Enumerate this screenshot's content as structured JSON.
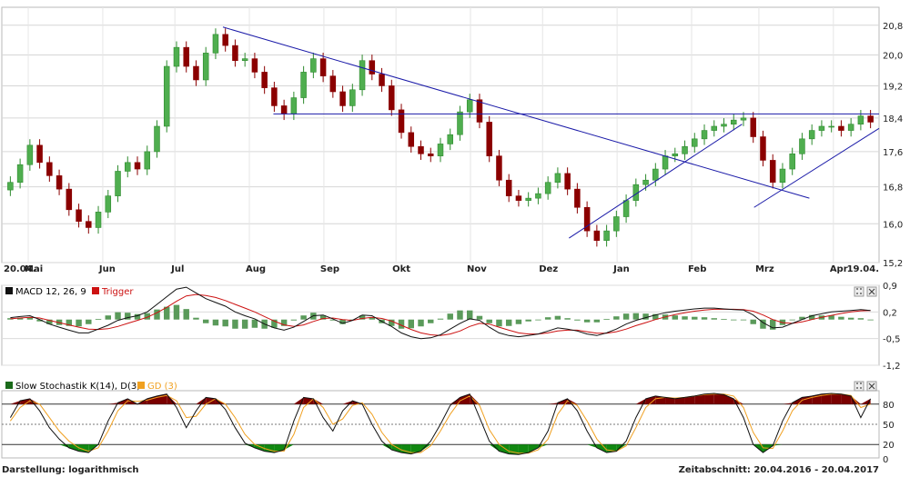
{
  "footer": {
    "scale_label": "Darstellung: logarithmisch",
    "period_label": "Zeitabschnitt: 20.04.2016 - 20.04.2017"
  },
  "colors": {
    "up_candle": "#2e8b2e",
    "down_candle": "#8b0000",
    "trendline": "#1a1aa8",
    "macd": "#111111",
    "trigger": "#cc1111",
    "stoch_k": "#111111",
    "stoch_d": "#f0a020",
    "overbought_fill": "#7a0000",
    "oversold_fill": "#118811"
  },
  "chart_data": [
    {
      "type": "candlestick",
      "scale": "log",
      "ylim": [
        15.2,
        21.3
      ],
      "y_ticks": [
        "15,2",
        "16,0",
        "16,8",
        "17,6",
        "18,4",
        "19,2",
        "20,0",
        "20,8"
      ],
      "x_ticks": [
        "20.04.",
        "Mai",
        "Jun",
        "Jul",
        "Aug",
        "Sep",
        "Okt",
        "Nov",
        "Dez",
        "Jan",
        "Feb",
        "Mrz",
        "Apr",
        "19.04."
      ],
      "close_series": [
        16.9,
        17.3,
        17.75,
        17.35,
        17.05,
        16.75,
        16.3,
        16.05,
        15.92,
        16.25,
        16.6,
        17.15,
        17.35,
        17.2,
        17.6,
        18.2,
        19.7,
        20.2,
        19.7,
        19.35,
        20.05,
        20.55,
        20.25,
        19.85,
        19.9,
        19.55,
        19.15,
        18.7,
        18.5,
        18.9,
        19.55,
        19.9,
        19.45,
        19.05,
        18.7,
        19.1,
        19.85,
        19.5,
        19.2,
        18.6,
        18.05,
        17.72,
        17.55,
        17.5,
        17.78,
        18.0,
        18.55,
        18.85,
        18.3,
        17.5,
        16.95,
        16.6,
        16.5,
        16.55,
        16.65,
        16.9,
        17.1,
        16.75,
        16.35,
        15.85,
        15.65,
        15.85,
        16.15,
        16.5,
        16.85,
        16.95,
        17.2,
        17.5,
        17.55,
        17.72,
        17.9,
        18.1,
        18.2,
        18.25,
        18.35,
        18.4,
        17.95,
        17.4,
        16.9,
        17.2,
        17.55,
        17.9,
        18.1,
        18.2,
        18.2,
        18.1,
        18.25,
        18.45,
        18.3
      ],
      "trendlines": [
        {
          "from": [
            "2016-07-21",
            20.75
          ],
          "to": [
            "2017-03-22",
            16.55
          ]
        },
        {
          "from": [
            "2016-08-11",
            18.5
          ],
          "to": [
            "2017-04-20",
            18.5
          ]
        },
        {
          "from": [
            "2016-12-12",
            15.7
          ],
          "to": [
            "2017-02-22",
            18.25
          ]
        },
        {
          "from": [
            "2017-02-27",
            16.35
          ],
          "to": [
            "2017-04-20",
            18.15
          ]
        }
      ]
    },
    {
      "type": "line",
      "legend": [
        "MACD 12, 26, 9",
        "Trigger"
      ],
      "ylim": [
        -1.2,
        0.9
      ],
      "y_ticks": [
        "0,9",
        "0,2",
        "-0,5",
        "-1,2"
      ],
      "series": [
        {
          "name": "MACD 12, 26, 9",
          "values": [
            0.05,
            0.08,
            0.1,
            0.0,
            -0.12,
            -0.2,
            -0.28,
            -0.35,
            -0.35,
            -0.25,
            -0.15,
            -0.02,
            0.05,
            0.1,
            0.2,
            0.4,
            0.6,
            0.8,
            0.85,
            0.7,
            0.55,
            0.45,
            0.35,
            0.2,
            0.1,
            0.02,
            -0.12,
            -0.22,
            -0.28,
            -0.2,
            -0.05,
            0.1,
            0.12,
            0.02,
            -0.1,
            -0.02,
            0.12,
            0.1,
            -0.05,
            -0.18,
            -0.35,
            -0.45,
            -0.5,
            -0.48,
            -0.4,
            -0.25,
            -0.1,
            0.02,
            -0.02,
            -0.2,
            -0.35,
            -0.42,
            -0.45,
            -0.42,
            -0.38,
            -0.3,
            -0.22,
            -0.25,
            -0.3,
            -0.38,
            -0.42,
            -0.35,
            -0.25,
            -0.12,
            -0.02,
            0.05,
            0.12,
            0.18,
            0.22,
            0.25,
            0.28,
            0.3,
            0.3,
            0.28,
            0.26,
            0.25,
            0.12,
            -0.08,
            -0.22,
            -0.2,
            -0.1,
            0.0,
            0.1,
            0.15,
            0.2,
            0.22,
            0.24,
            0.26,
            0.24
          ]
        },
        {
          "name": "Trigger",
          "values": [
            0.02,
            0.04,
            0.06,
            0.04,
            -0.02,
            -0.08,
            -0.14,
            -0.2,
            -0.25,
            -0.26,
            -0.24,
            -0.18,
            -0.1,
            -0.02,
            0.06,
            0.18,
            0.32,
            0.48,
            0.62,
            0.66,
            0.63,
            0.58,
            0.5,
            0.4,
            0.3,
            0.2,
            0.08,
            -0.04,
            -0.14,
            -0.18,
            -0.14,
            -0.05,
            0.03,
            0.04,
            0.0,
            -0.02,
            0.03,
            0.06,
            0.03,
            -0.04,
            -0.15,
            -0.26,
            -0.35,
            -0.4,
            -0.42,
            -0.38,
            -0.3,
            -0.18,
            -0.1,
            -0.12,
            -0.2,
            -0.28,
            -0.35,
            -0.38,
            -0.38,
            -0.35,
            -0.3,
            -0.28,
            -0.28,
            -0.32,
            -0.36,
            -0.36,
            -0.32,
            -0.25,
            -0.16,
            -0.08,
            0.0,
            0.07,
            0.13,
            0.18,
            0.22,
            0.25,
            0.27,
            0.27,
            0.27,
            0.26,
            0.22,
            0.12,
            0.0,
            -0.08,
            -0.1,
            -0.06,
            0.0,
            0.06,
            0.11,
            0.16,
            0.2,
            0.23,
            0.24
          ]
        }
      ]
    },
    {
      "type": "line",
      "legend": [
        "Slow Stochastik K(14), D(3)",
        "GD (3)"
      ],
      "ylim": [
        0,
        100
      ],
      "y_ticks": [
        "80",
        "50",
        "20"
      ],
      "bottom_tick": "0",
      "reference_lines": [
        80,
        50,
        20
      ],
      "series": [
        {
          "name": "Slow Stochastik K(14), D(3)",
          "values": [
            60,
            85,
            88,
            70,
            45,
            28,
            15,
            10,
            8,
            20,
            55,
            82,
            88,
            80,
            88,
            92,
            95,
            75,
            45,
            70,
            90,
            88,
            72,
            45,
            22,
            15,
            10,
            8,
            12,
            55,
            90,
            88,
            60,
            40,
            70,
            85,
            80,
            50,
            25,
            12,
            8,
            6,
            10,
            25,
            50,
            78,
            90,
            95,
            60,
            25,
            10,
            6,
            5,
            8,
            15,
            40,
            82,
            88,
            70,
            40,
            15,
            8,
            10,
            25,
            60,
            88,
            92,
            90,
            88,
            90,
            92,
            95,
            96,
            94,
            88,
            60,
            20,
            8,
            18,
            55,
            82,
            90,
            92,
            95,
            96,
            95,
            92,
            60,
            88
          ]
        },
        {
          "name": "GD (3)",
          "values": [
            55,
            75,
            85,
            80,
            60,
            40,
            25,
            15,
            10,
            15,
            40,
            70,
            85,
            84,
            86,
            90,
            93,
            85,
            60,
            62,
            80,
            88,
            80,
            60,
            35,
            20,
            14,
            10,
            10,
            35,
            75,
            88,
            75,
            50,
            58,
            78,
            82,
            65,
            38,
            20,
            12,
            8,
            8,
            18,
            40,
            65,
            85,
            92,
            78,
            42,
            20,
            10,
            7,
            7,
            12,
            28,
            65,
            85,
            78,
            55,
            28,
            12,
            10,
            18,
            45,
            75,
            88,
            90,
            89,
            90,
            92,
            94,
            95,
            95,
            92,
            75,
            38,
            15,
            14,
            40,
            70,
            86,
            90,
            93,
            95,
            95,
            93,
            75,
            80
          ]
        }
      ]
    }
  ]
}
